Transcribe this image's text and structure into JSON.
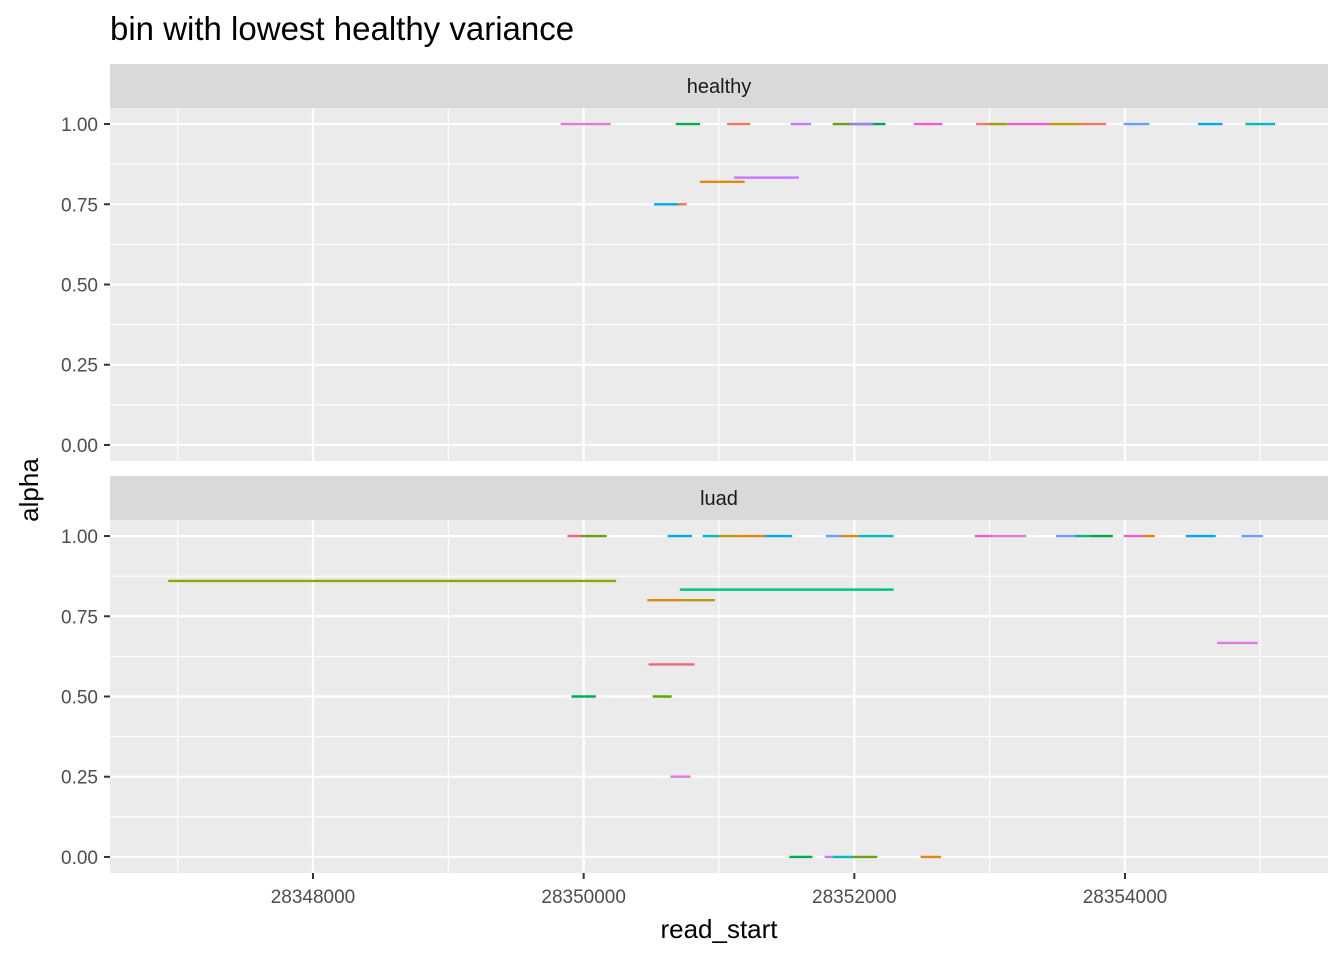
{
  "chart_data": {
    "type": "segment",
    "title": "bin with lowest healthy variance",
    "xlabel": "read_start",
    "ylabel": "alpha",
    "xlim": [
      28346500,
      28355500
    ],
    "ylim": [
      -0.05,
      1.05
    ],
    "x_ticks": [
      28348000,
      28350000,
      28352000,
      28354000
    ],
    "x_tick_labels": [
      "28348000",
      "28350000",
      "28352000",
      "28354000"
    ],
    "y_ticks": [
      0,
      0.25,
      0.5,
      0.75,
      1
    ],
    "y_tick_labels": [
      "0.00",
      "0.25",
      "0.50",
      "0.75",
      "1.00"
    ],
    "grid": true,
    "legend": "none",
    "facets": [
      {
        "label": "healthy",
        "segments": [
          {
            "x0": 28349830,
            "x1": 28350200,
            "y": 1.0,
            "color": "#e07be6"
          },
          {
            "x0": 28350680,
            "x1": 28350860,
            "y": 1.0,
            "color": "#00b050"
          },
          {
            "x0": 28351060,
            "x1": 28351230,
            "y": 1.0,
            "color": "#f07a5a"
          },
          {
            "x0": 28351530,
            "x1": 28351680,
            "y": 1.0,
            "color": "#c77cff"
          },
          {
            "x0": 28351840,
            "x1": 28351970,
            "y": 1.0,
            "color": "#6fa010"
          },
          {
            "x0": 28351970,
            "x1": 28352230,
            "y": 1.0,
            "color": "#00a64a"
          },
          {
            "x0": 28351970,
            "x1": 28352140,
            "y": 1.0,
            "color": "#a47cf6"
          },
          {
            "x0": 28352440,
            "x1": 28352650,
            "y": 1.0,
            "color": "#f060c8"
          },
          {
            "x0": 28352900,
            "x1": 28353020,
            "y": 1.0,
            "color": "#f07a6e"
          },
          {
            "x0": 28353000,
            "x1": 28353130,
            "y": 1.0,
            "color": "#9aa400"
          },
          {
            "x0": 28353130,
            "x1": 28353440,
            "y": 1.0,
            "color": "#f060c8"
          },
          {
            "x0": 28353440,
            "x1": 28353660,
            "y": 1.0,
            "color": "#c59a00"
          },
          {
            "x0": 28353660,
            "x1": 28353860,
            "y": 1.0,
            "color": "#f07a5a"
          },
          {
            "x0": 28353990,
            "x1": 28354180,
            "y": 1.0,
            "color": "#6f9eff"
          },
          {
            "x0": 28354540,
            "x1": 28354720,
            "y": 1.0,
            "color": "#00a9f0"
          },
          {
            "x0": 28354890,
            "x1": 28355110,
            "y": 1.0,
            "color": "#00bcc0"
          },
          {
            "x0": 28350520,
            "x1": 28350700,
            "y": 0.75,
            "color": "#00a9f0"
          },
          {
            "x0": 28350700,
            "x1": 28350760,
            "y": 0.75,
            "color": "#f07a5a"
          },
          {
            "x0": 28350860,
            "x1": 28351190,
            "y": 0.82,
            "color": "#e08a0b"
          },
          {
            "x0": 28351110,
            "x1": 28351590,
            "y": 0.833,
            "color": "#c77cff"
          }
        ]
      },
      {
        "label": "luad",
        "segments": [
          {
            "x0": 28349880,
            "x1": 28349980,
            "y": 1.0,
            "color": "#f0677a"
          },
          {
            "x0": 28349980,
            "x1": 28350170,
            "y": 1.0,
            "color": "#6fa010"
          },
          {
            "x0": 28350620,
            "x1": 28350800,
            "y": 1.0,
            "color": "#00a9f0"
          },
          {
            "x0": 28350880,
            "x1": 28351000,
            "y": 1.0,
            "color": "#00bcc0"
          },
          {
            "x0": 28351000,
            "x1": 28351160,
            "y": 1.0,
            "color": "#c59a00"
          },
          {
            "x0": 28351160,
            "x1": 28351340,
            "y": 1.0,
            "color": "#e08a0b"
          },
          {
            "x0": 28351340,
            "x1": 28351540,
            "y": 1.0,
            "color": "#00a9f0"
          },
          {
            "x0": 28351790,
            "x1": 28351900,
            "y": 1.0,
            "color": "#6f9eff"
          },
          {
            "x0": 28351900,
            "x1": 28352030,
            "y": 1.0,
            "color": "#e08a0b"
          },
          {
            "x0": 28352030,
            "x1": 28352290,
            "y": 1.0,
            "color": "#00bcc0"
          },
          {
            "x0": 28352890,
            "x1": 28353020,
            "y": 1.0,
            "color": "#f060c8"
          },
          {
            "x0": 28353020,
            "x1": 28353270,
            "y": 1.0,
            "color": "#e07be6"
          },
          {
            "x0": 28353490,
            "x1": 28353630,
            "y": 1.0,
            "color": "#6f9eff"
          },
          {
            "x0": 28353630,
            "x1": 28353740,
            "y": 1.0,
            "color": "#00bc7a"
          },
          {
            "x0": 28353740,
            "x1": 28353910,
            "y": 1.0,
            "color": "#00a64a"
          },
          {
            "x0": 28353990,
            "x1": 28354140,
            "y": 1.0,
            "color": "#f060c8"
          },
          {
            "x0": 28354140,
            "x1": 28354220,
            "y": 1.0,
            "color": "#e08a0b"
          },
          {
            "x0": 28354450,
            "x1": 28354670,
            "y": 1.0,
            "color": "#00a9f0"
          },
          {
            "x0": 28354860,
            "x1": 28355020,
            "y": 1.0,
            "color": "#6f9eff"
          },
          {
            "x0": 28346930,
            "x1": 28350240,
            "y": 0.86,
            "color": "#8fa800"
          },
          {
            "x0": 28350710,
            "x1": 28352290,
            "y": 0.833,
            "color": "#00c08b"
          },
          {
            "x0": 28350470,
            "x1": 28350730,
            "y": 0.8,
            "color": "#e08a0b"
          },
          {
            "x0": 28350730,
            "x1": 28350970,
            "y": 0.8,
            "color": "#b59a10"
          },
          {
            "x0": 28350480,
            "x1": 28350820,
            "y": 0.6,
            "color": "#f0677a"
          },
          {
            "x0": 28349910,
            "x1": 28350090,
            "y": 0.5,
            "color": "#00b050"
          },
          {
            "x0": 28350510,
            "x1": 28350650,
            "y": 0.5,
            "color": "#5aa800"
          },
          {
            "x0": 28350640,
            "x1": 28350790,
            "y": 0.25,
            "color": "#e07be6"
          },
          {
            "x0": 28351520,
            "x1": 28351690,
            "y": 0.0,
            "color": "#00b050"
          },
          {
            "x0": 28351780,
            "x1": 28351840,
            "y": 0.0,
            "color": "#c77cff"
          },
          {
            "x0": 28351840,
            "x1": 28351990,
            "y": 0.0,
            "color": "#00bcc0"
          },
          {
            "x0": 28351990,
            "x1": 28352170,
            "y": 0.0,
            "color": "#6fa010"
          },
          {
            "x0": 28352490,
            "x1": 28352640,
            "y": 0.0,
            "color": "#e08a0b"
          },
          {
            "x0": 28354680,
            "x1": 28354980,
            "y": 0.667,
            "color": "#e07be6"
          }
        ]
      }
    ]
  }
}
